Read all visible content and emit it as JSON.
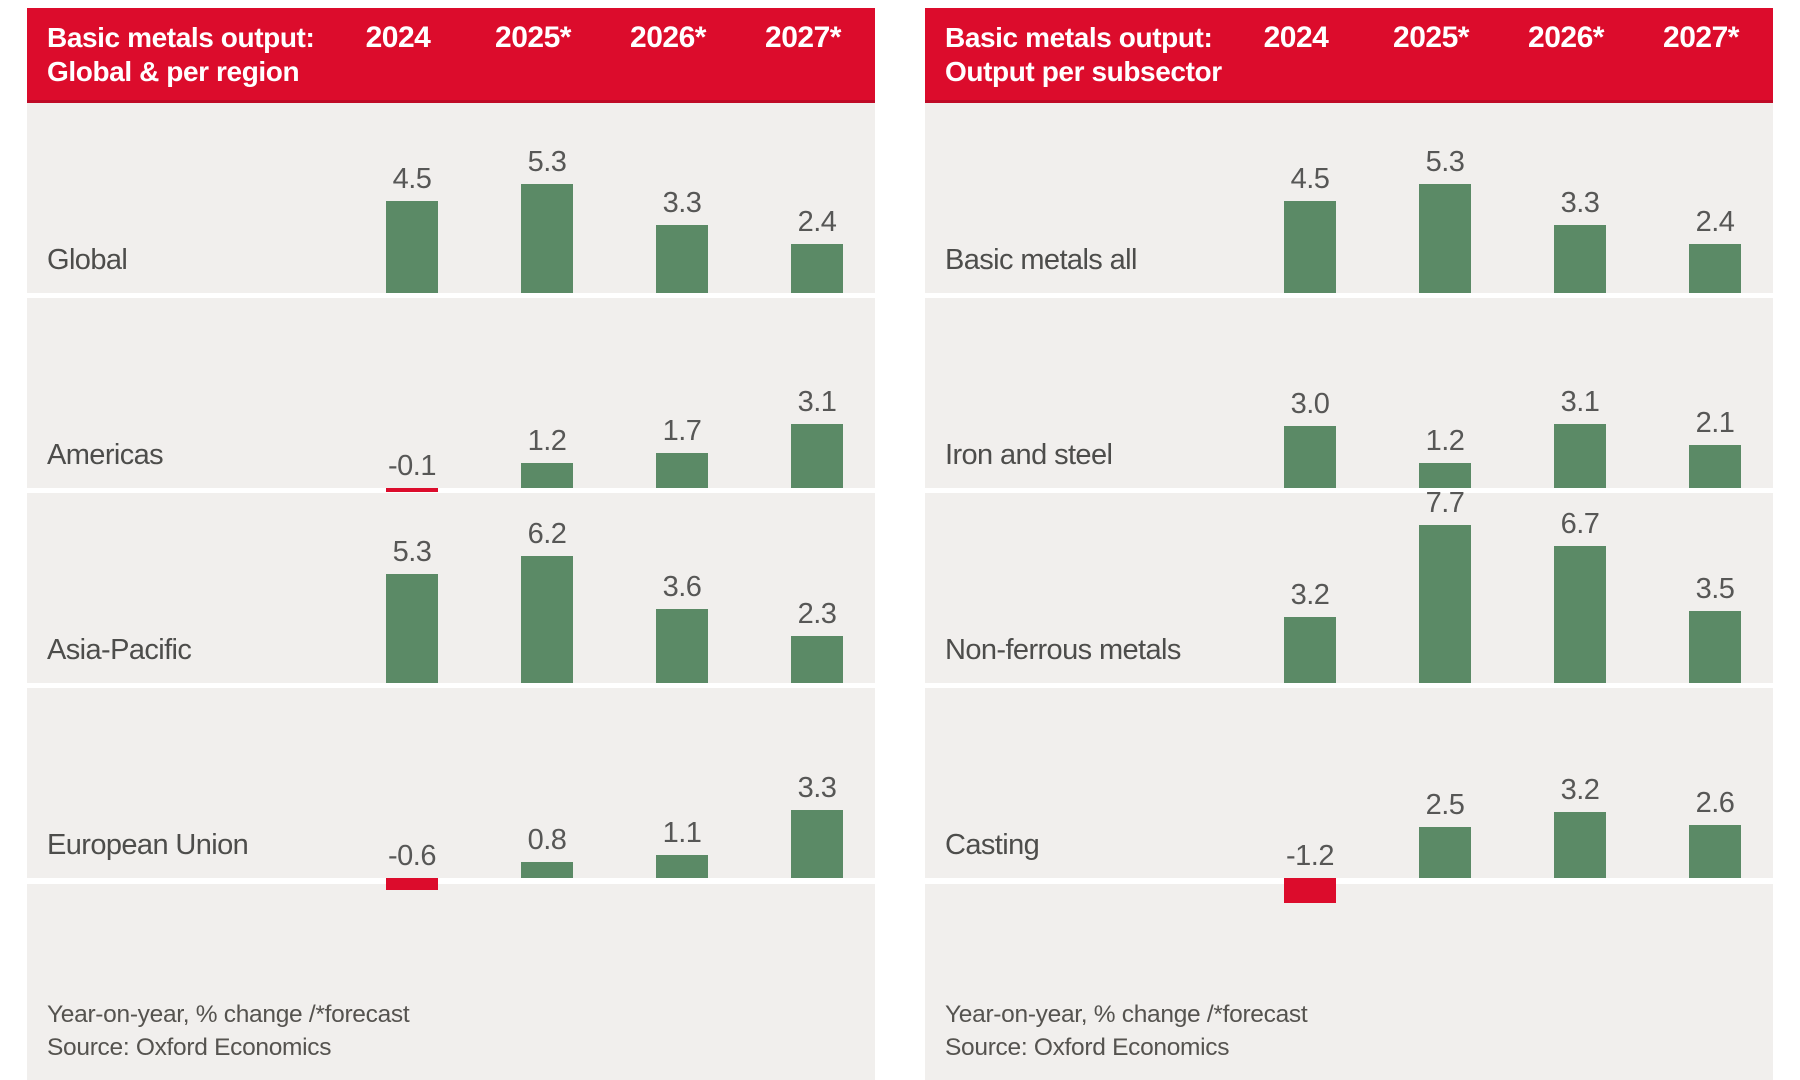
{
  "colors": {
    "header_red": "#dc0c2c",
    "header_red_edge": "#bf0a26",
    "bar_green": "#5b8a66",
    "bar_red": "#dc0c2c",
    "row_bg": "#f1efed",
    "page_bg": "#ffffff",
    "title_text": "#ffffff",
    "label_text": "#4d4d4b",
    "value_text": "#575756",
    "footer_text": "#55534f"
  },
  "panels": [
    {
      "title_line1": "Basic metals output:",
      "title_line2": "Global & per region",
      "years": [
        "2024",
        "2025*",
        "2026*",
        "2027*"
      ],
      "rows": [
        {
          "label": "Global",
          "values": [
            4.5,
            5.3,
            3.3,
            2.4
          ]
        },
        {
          "label": "Americas",
          "values": [
            -0.1,
            1.2,
            1.7,
            3.1
          ]
        },
        {
          "label": "Asia-Pacific",
          "values": [
            5.3,
            6.2,
            3.6,
            2.3
          ]
        },
        {
          "label": "European Union",
          "values": [
            -0.6,
            0.8,
            1.1,
            3.3
          ]
        }
      ],
      "footnote": "Year-on-year, % change /*forecast",
      "source": "Source: Oxford Economics"
    },
    {
      "title_line1": "Basic metals output:",
      "title_line2": "Output per subsector",
      "years": [
        "2024",
        "2025*",
        "2026*",
        "2027*"
      ],
      "rows": [
        {
          "label": "Basic metals all",
          "values": [
            4.5,
            5.3,
            3.3,
            2.4
          ]
        },
        {
          "label": "Iron and steel",
          "values": [
            3.0,
            1.2,
            3.1,
            2.1
          ]
        },
        {
          "label": "Non-ferrous metals",
          "values": [
            3.2,
            7.7,
            6.7,
            3.5
          ]
        },
        {
          "label": "Casting",
          "values": [
            -1.2,
            2.5,
            3.2,
            2.6
          ]
        }
      ],
      "footnote": "Year-on-year, % change /*forecast",
      "source": "Source: Oxford Economics"
    }
  ],
  "chart_data": [
    {
      "type": "bar",
      "title": "Basic metals output: Global & per region",
      "categories": [
        "2024",
        "2025*",
        "2026*",
        "2027*"
      ],
      "series": [
        {
          "name": "Global",
          "values": [
            4.5,
            5.3,
            3.3,
            2.4
          ]
        },
        {
          "name": "Americas",
          "values": [
            -0.1,
            1.2,
            1.7,
            3.1
          ]
        },
        {
          "name": "Asia-Pacific",
          "values": [
            5.3,
            6.2,
            3.6,
            2.3
          ]
        },
        {
          "name": "European Union",
          "values": [
            -0.6,
            0.8,
            1.1,
            3.3
          ]
        }
      ],
      "ylabel": "Year-on-year, % change /*forecast",
      "source": "Source: Oxford Economics",
      "ylim": [
        -1.5,
        8
      ],
      "grid": false,
      "legend_position": "none",
      "positive_color": "#5b8a66",
      "negative_color": "#dc0c2c"
    },
    {
      "type": "bar",
      "title": "Basic metals output: Output per subsector",
      "categories": [
        "2024",
        "2025*",
        "2026*",
        "2027*"
      ],
      "series": [
        {
          "name": "Basic metals all",
          "values": [
            4.5,
            5.3,
            3.3,
            2.4
          ]
        },
        {
          "name": "Iron and steel",
          "values": [
            3.0,
            1.2,
            3.1,
            2.1
          ]
        },
        {
          "name": "Non-ferrous metals",
          "values": [
            3.2,
            7.7,
            6.7,
            3.5
          ]
        },
        {
          "name": "Casting",
          "values": [
            -1.2,
            2.5,
            3.2,
            2.6
          ]
        }
      ],
      "ylabel": "Year-on-year, % change /*forecast",
      "source": "Source: Oxford Economics",
      "ylim": [
        -1.5,
        8
      ],
      "grid": false,
      "legend_position": "none",
      "positive_color": "#5b8a66",
      "negative_color": "#dc0c2c"
    }
  ]
}
